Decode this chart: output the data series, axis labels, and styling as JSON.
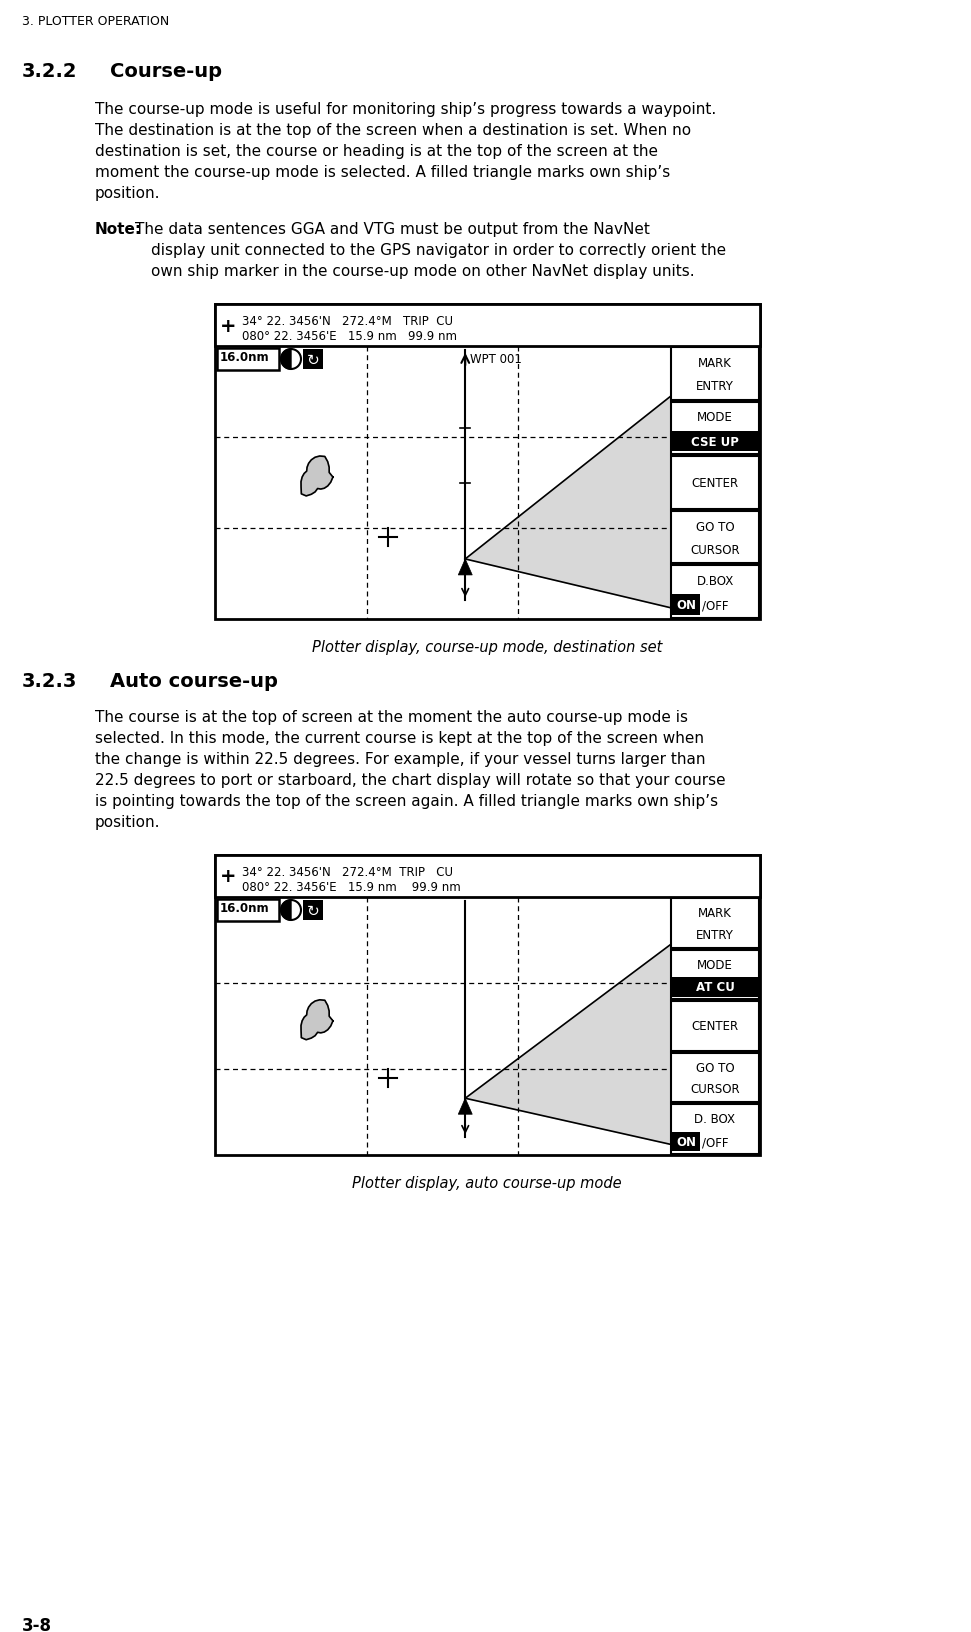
{
  "page_header": "3. PLOTTER OPERATION",
  "page_footer": "3-8",
  "section_322_num": "3.2.2",
  "section_322_title": "Course-up",
  "section_322_body": [
    "The course-up mode is useful for monitoring ship’s progress towards a waypoint.",
    "The destination is at the top of the screen when a destination is set. When no",
    "destination is set, the course or heading is at the top of the screen at the",
    "moment the course-up mode is selected. A filled triangle marks own ship’s",
    "position."
  ],
  "note_bold": "Note:",
  "note_line1": "The data sentences GGA and VTG must be output from the NavNet",
  "note_line2": "display unit connected to the GPS navigator in order to correctly orient the",
  "note_line3": "own ship marker in the course-up mode on other NavNet display units.",
  "display1_line1": "34° 22. 3456'N   272.4°M   TRIP  CU",
  "display1_line2": "080° 22. 3456'E   15.9 nm   99.9 nm",
  "display1_range": "16.0nm",
  "display1_wpt": "WPT 001",
  "display1_btns": [
    "MARK\nENTRY",
    "MODE\nCSE UP",
    "CENTER",
    "GO TO\nCURSOR",
    "D.BOX\nON/OFF"
  ],
  "display1_highlight": "CSE UP",
  "display1_caption": "Plotter display, course-up mode, destination set",
  "section_323_num": "3.2.3",
  "section_323_title": "Auto course-up",
  "section_323_body": [
    "The course is at the top of screen at the moment the auto course-up mode is",
    "selected. In this mode, the current course is kept at the top of the screen when",
    "the change is within 22.5 degrees. For example, if your vessel turns larger than",
    "22.5 degrees to port or starboard, the chart display will rotate so that your course",
    "is pointing towards the top of the screen again. A filled triangle marks own ship’s",
    "position."
  ],
  "display2_line1": "34° 22. 3456'N   272.4°M  TRIP   CU",
  "display2_line2": "080° 22. 3456'E   15.9 nm    99.9 nm",
  "display2_range": "16.0nm",
  "display2_btns": [
    "MARK\nENTRY",
    "MODE\nAT CU",
    "CENTER",
    "GO TO\nCURSOR",
    "D. BOX\nON/OFF"
  ],
  "display2_highlight": "AT CU",
  "display2_caption": "Plotter display, auto course-up mode",
  "bg": "#ffffff",
  "black": "#000000",
  "gray_island": "#c8c8c8",
  "gray_cone": "#d8d8d8"
}
